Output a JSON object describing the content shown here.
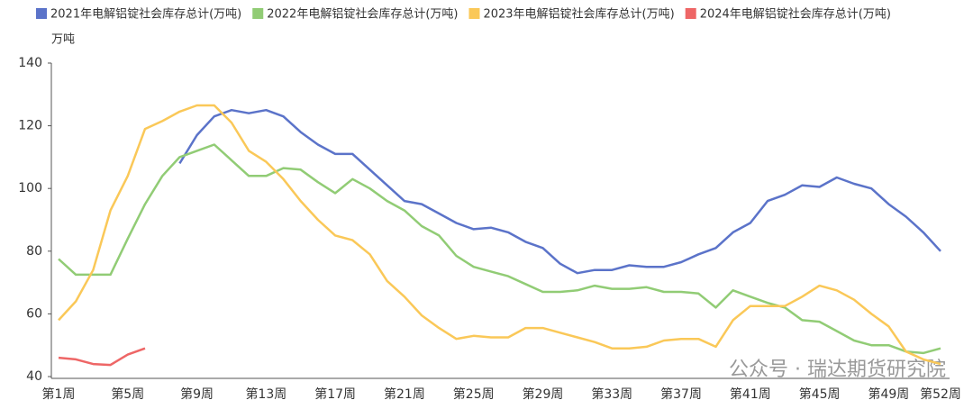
{
  "chart_data": {
    "type": "line",
    "y_unit": "万吨",
    "watermark": "公众号 · 瑞达期货研究院",
    "categories": [
      "第1周",
      null,
      null,
      null,
      "第5周",
      null,
      null,
      null,
      "第9周",
      null,
      null,
      null,
      "第13周",
      null,
      null,
      null,
      "第17周",
      null,
      null,
      null,
      "第21周",
      null,
      null,
      null,
      "第25周",
      null,
      null,
      null,
      "第29周",
      null,
      null,
      null,
      "第33周",
      null,
      null,
      null,
      "第37周",
      null,
      null,
      null,
      "第41周",
      null,
      null,
      null,
      "第45周",
      null,
      null,
      null,
      "第49周",
      null,
      null,
      "第52周"
    ],
    "ylim": [
      40,
      140
    ],
    "yticks": [
      40,
      60,
      80,
      100,
      120,
      140
    ],
    "series": [
      {
        "name": "2021年电解铝锭社会库存总计(万吨)",
        "color": "#5b73c9",
        "values": [
          null,
          null,
          null,
          null,
          null,
          null,
          null,
          108,
          117,
          123,
          125,
          124,
          125,
          123,
          118,
          114,
          111,
          111,
          106,
          101,
          96,
          95,
          92,
          89,
          87,
          87.5,
          86,
          83,
          81,
          76,
          73,
          74,
          74,
          75.5,
          75,
          75,
          76.5,
          79,
          81,
          86,
          89,
          96,
          98,
          101,
          100.5,
          103.5,
          101.5,
          100,
          95,
          91,
          86,
          80
        ]
      },
      {
        "name": "2022年电解铝锭社会库存总计(万吨)",
        "color": "#91cc75",
        "values": [
          77.5,
          72.5,
          72.5,
          72.5,
          84,
          95,
          104,
          110,
          112,
          114,
          109,
          104,
          104,
          106.5,
          106,
          102,
          98.5,
          103,
          100,
          96,
          93,
          88,
          85,
          78.5,
          75,
          73.5,
          72,
          69.5,
          67,
          67,
          67.5,
          69,
          68,
          68,
          68.5,
          67,
          67,
          66.5,
          62,
          67.5,
          65.5,
          63.5,
          62,
          58,
          57.5,
          54.5,
          51.5,
          50,
          50,
          48,
          47.5,
          49
        ]
      },
      {
        "name": "2023年电解铝锭社会库存总计(万吨)",
        "color": "#fac858",
        "values": [
          58,
          64,
          74,
          93,
          104,
          119,
          121.5,
          124.5,
          126.5,
          126.5,
          121,
          112,
          108.5,
          103,
          96,
          90,
          85,
          83.5,
          79,
          70.5,
          65.5,
          59.5,
          55.5,
          52,
          53,
          52.5,
          52.5,
          55.5,
          55.5,
          54,
          52.5,
          51,
          49,
          49,
          49.5,
          51.5,
          52,
          52,
          49.5,
          58,
          62.5,
          62.5,
          62.5,
          65.5,
          69,
          67.5,
          64.5,
          60,
          56,
          48,
          45.5,
          44
        ]
      },
      {
        "name": "2024年电解铝锭社会库存总计(万吨)",
        "color": "#ee6666",
        "values": [
          46,
          45.5,
          44,
          43.7,
          47,
          49,
          null,
          null,
          null,
          null,
          null,
          null,
          null,
          null,
          null,
          null,
          null,
          null,
          null,
          null,
          null,
          null,
          null,
          null,
          null,
          null,
          null,
          null,
          null,
          null,
          null,
          null,
          null,
          null,
          null,
          null,
          null,
          null,
          null,
          null,
          null,
          null,
          null,
          null,
          null,
          null,
          null,
          null,
          null,
          null,
          null,
          null
        ]
      }
    ]
  }
}
